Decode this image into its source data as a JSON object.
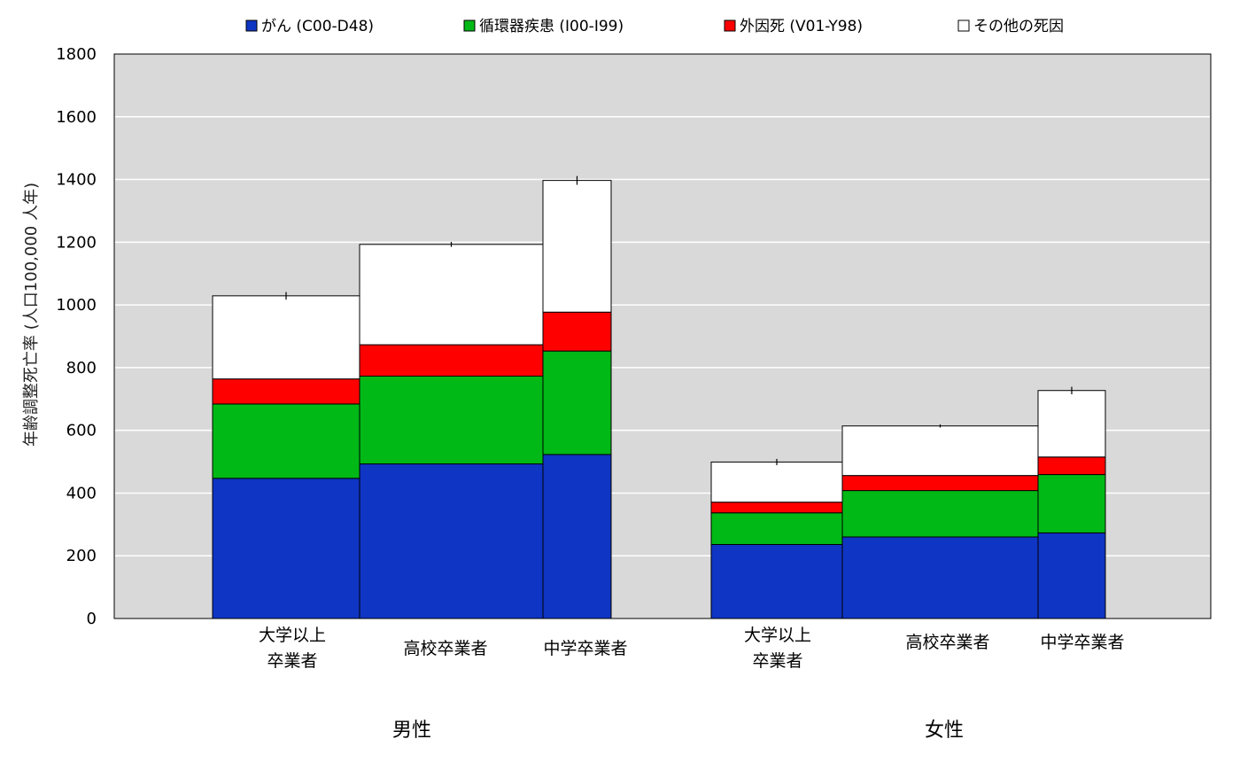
{
  "chart_data": {
    "type": "bar",
    "variant": "stacked-variable-width",
    "ylabel": "年齢調整死亡率 (人口100,000 人年)",
    "ylim": [
      0,
      1800
    ],
    "yticks": [
      0,
      200,
      400,
      600,
      800,
      1000,
      1200,
      1400,
      1600,
      1800
    ],
    "grid": true,
    "legend_position": "top",
    "colors": {
      "plot_bg": "#d9d9d9",
      "grid": "#ffffff",
      "cancer": "#0f35c4",
      "circulatory": "#00b916",
      "external": "#ff0000",
      "other": "#ffffff"
    },
    "series": [
      {
        "key": "cancer",
        "name": "がん (C00-D48)"
      },
      {
        "key": "circulatory",
        "name": "循環器疾患 (I00-I99)"
      },
      {
        "key": "external",
        "name": "外因死 (V01-Y98)"
      },
      {
        "key": "other",
        "name": "その他の死因"
      }
    ],
    "groups": [
      {
        "label": "男性",
        "categories": [
          {
            "label": [
              "大学以上",
              "卒業者"
            ],
            "values": {
              "cancer": 447,
              "circulatory": 237,
              "external": 80,
              "other": 265
            },
            "total": 1029,
            "error": 12
          },
          {
            "label": [
              "高校卒業者"
            ],
            "values": {
              "cancer": 493,
              "circulatory": 280,
              "external": 100,
              "other": 320
            },
            "total": 1193,
            "error": 8
          },
          {
            "label": [
              "中学卒業者"
            ],
            "values": {
              "cancer": 523,
              "circulatory": 330,
              "external": 124,
              "other": 420
            },
            "total": 1397,
            "error": 14
          }
        ]
      },
      {
        "label": "女性",
        "categories": [
          {
            "label": [
              "大学以上",
              "卒業者"
            ],
            "values": {
              "cancer": 236,
              "circulatory": 101,
              "external": 34,
              "other": 128
            },
            "total": 499,
            "error": 10
          },
          {
            "label": [
              "高校卒業者"
            ],
            "values": {
              "cancer": 260,
              "circulatory": 148,
              "external": 48,
              "other": 158
            },
            "total": 614,
            "error": 5
          },
          {
            "label": [
              "中学卒業者"
            ],
            "values": {
              "cancer": 273,
              "circulatory": 186,
              "external": 56,
              "other": 212
            },
            "total": 727,
            "error": 12
          }
        ]
      }
    ]
  }
}
